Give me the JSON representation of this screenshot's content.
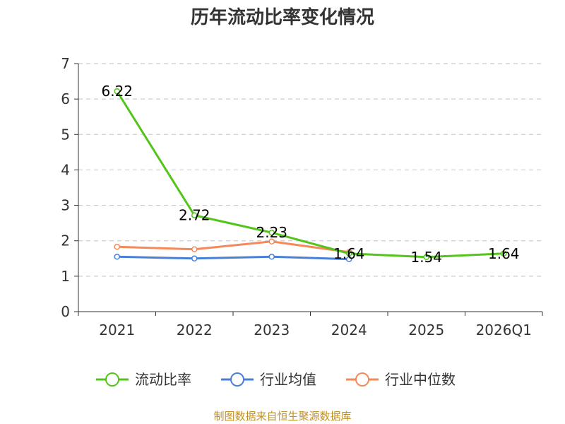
{
  "chart_data": {
    "type": "line",
    "title": "历年流动比率变化情况",
    "categories": [
      "2021",
      "2022",
      "2023",
      "2024",
      "2025",
      "2026Q1"
    ],
    "ylim": [
      0,
      7
    ],
    "yticks": [
      0,
      1,
      2,
      3,
      4,
      5,
      6,
      7
    ],
    "grid": true,
    "legend_position": "bottom",
    "series": [
      {
        "name": "流动比率",
        "color": "#52c41a",
        "values": [
          6.22,
          2.72,
          2.23,
          1.64,
          1.54,
          1.64
        ],
        "data_labels": [
          "6.22",
          "2.72",
          "2.23",
          "1.64",
          "1.54",
          "1.64"
        ]
      },
      {
        "name": "行业均值",
        "color": "#4a7fd6",
        "values": [
          1.55,
          1.5,
          1.55,
          1.48,
          null,
          null
        ]
      },
      {
        "name": "行业中位数",
        "color": "#f5895a",
        "values": [
          1.83,
          1.76,
          1.98,
          1.68,
          null,
          null
        ]
      }
    ]
  },
  "footer": "制图数据来自恒生聚源数据库"
}
